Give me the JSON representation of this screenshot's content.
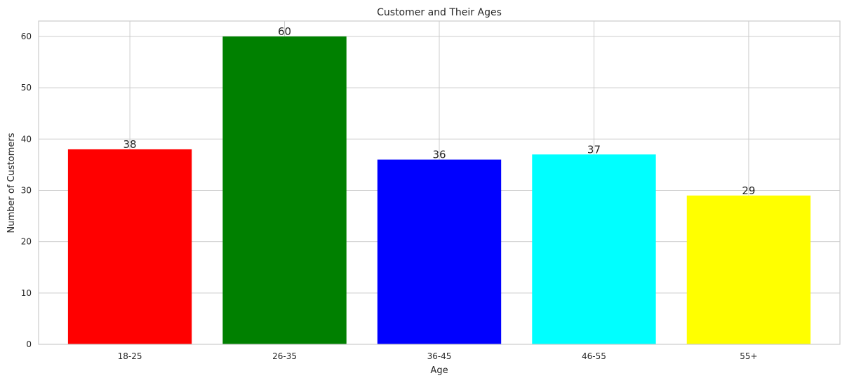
{
  "chart_data": {
    "type": "bar",
    "title": "Customer and Their Ages",
    "x_label": "Age",
    "y_label": "Number of Customers",
    "categories": [
      "18-25",
      "26-35",
      "36-45",
      "46-55",
      "55+"
    ],
    "values": [
      38,
      60,
      36,
      37,
      29
    ],
    "colors": [
      "#ff0000",
      "#008000",
      "#0000ff",
      "#00ffff",
      "#ffff00"
    ],
    "ylim": [
      0,
      63
    ],
    "yticks": [
      0,
      10,
      20,
      30,
      40,
      50,
      60
    ],
    "grid": true
  }
}
